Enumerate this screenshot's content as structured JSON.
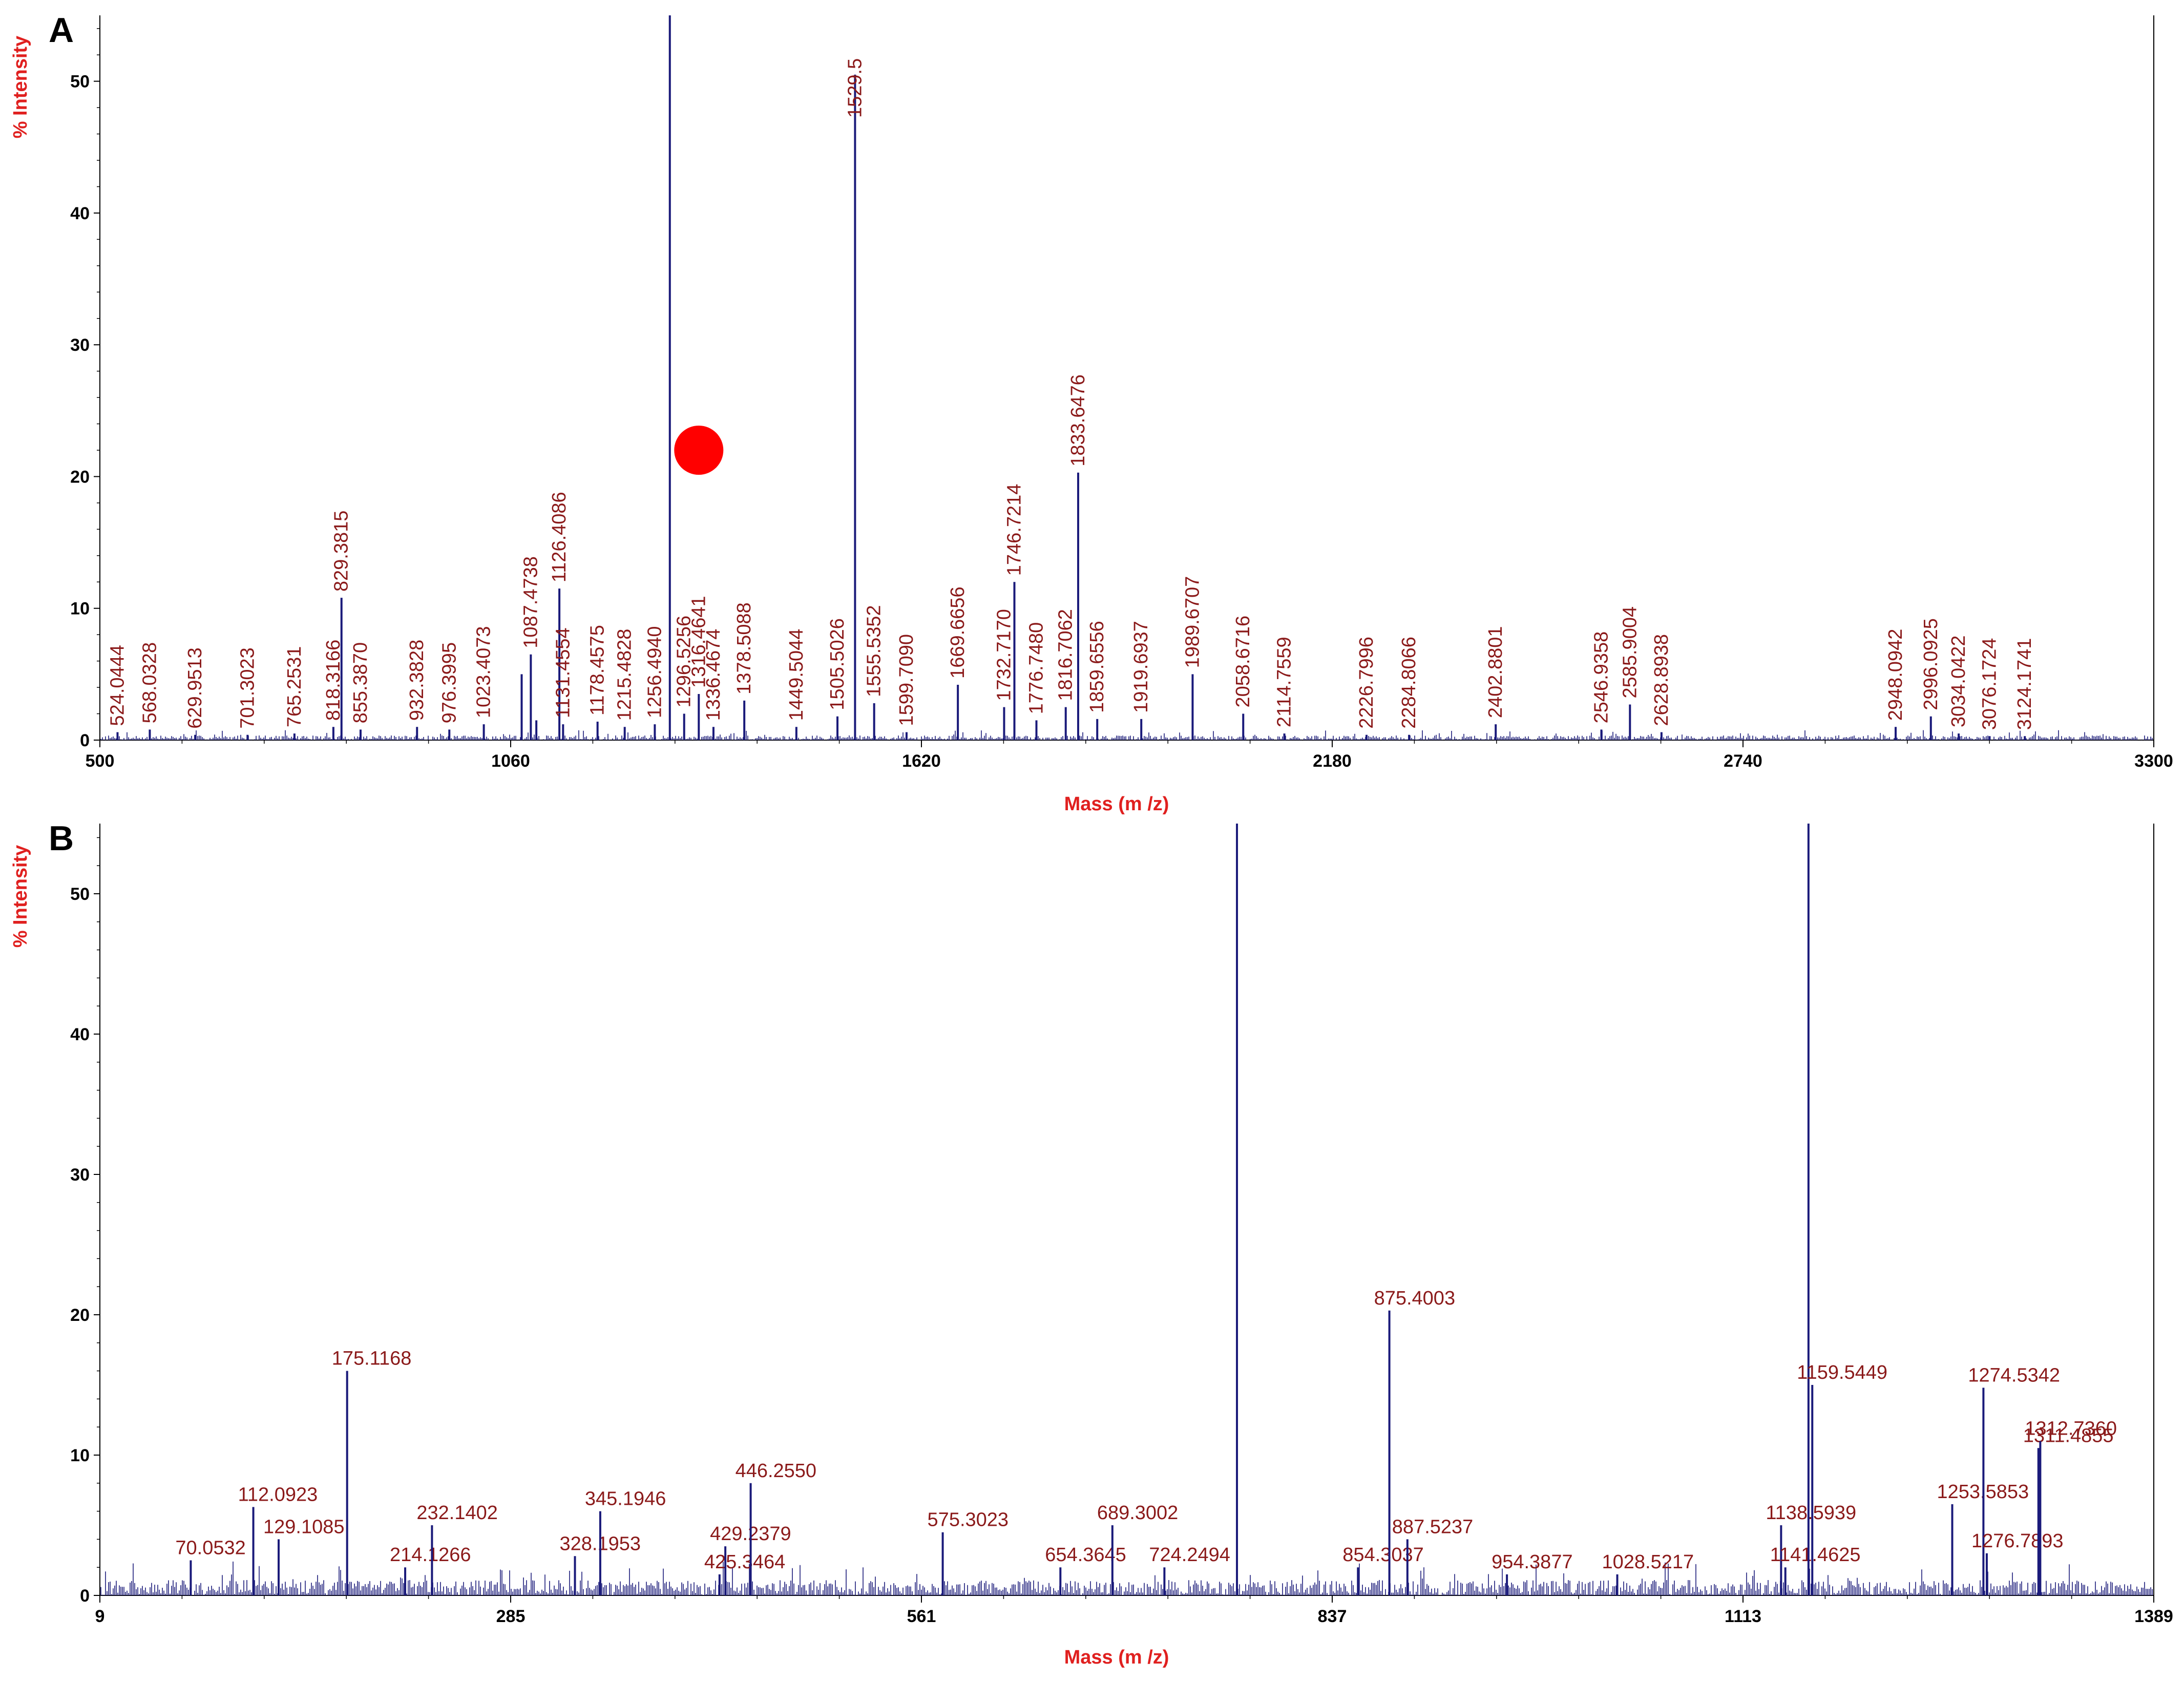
{
  "figure": {
    "panels": [
      "A",
      "B"
    ],
    "marker_color": "#ff0000",
    "trace_color": "#1a1a7a",
    "label_color": "#8b1a1a",
    "axis_title_color": "#e0201f"
  },
  "chart_data": [
    {
      "type": "line",
      "panel": "A",
      "xlabel": "Mass (m /z)",
      "ylabel": "% Intensity",
      "xlim": [
        500,
        3300
      ],
      "ylim": [
        0,
        55
      ],
      "x_ticks": [
        "500",
        "1060",
        "1620",
        "2180",
        "2740",
        "3300"
      ],
      "y_ticks": [
        "0",
        "10",
        "20",
        "30",
        "40",
        "50"
      ],
      "marker": {
        "shape": "circle",
        "x": 1316.4641,
        "y": 22
      },
      "peaks": [
        {
          "x": 524.0444,
          "y": 0.6,
          "label": "524.0444"
        },
        {
          "x": 568.0328,
          "y": 0.8,
          "label": "568.0328"
        },
        {
          "x": 629.9513,
          "y": 0.4,
          "label": "629.9513"
        },
        {
          "x": 701.3023,
          "y": 0.4,
          "label": "701.3023"
        },
        {
          "x": 765.2531,
          "y": 0.5,
          "label": "765.2531"
        },
        {
          "x": 818.3166,
          "y": 1.0,
          "label": "818.3166"
        },
        {
          "x": 829.3815,
          "y": 10.8,
          "label": "829.3815"
        },
        {
          "x": 855.387,
          "y": 0.8,
          "label": "855.3870"
        },
        {
          "x": 932.3828,
          "y": 1.0,
          "label": "932.3828"
        },
        {
          "x": 976.3995,
          "y": 0.8,
          "label": "976.3995"
        },
        {
          "x": 1023.4073,
          "y": 1.2,
          "label": "1023.4073"
        },
        {
          "x": 1075,
          "y": 5.0,
          "label": ""
        },
        {
          "x": 1087.4738,
          "y": 6.5,
          "label": "1087.4738"
        },
        {
          "x": 1095,
          "y": 1.5,
          "label": ""
        },
        {
          "x": 1126.4086,
          "y": 11.5,
          "label": "1126.4086"
        },
        {
          "x": 1131.4554,
          "y": 1.2,
          "label": "1131.4554"
        },
        {
          "x": 1178.4575,
          "y": 1.4,
          "label": "1178.4575"
        },
        {
          "x": 1215.4828,
          "y": 1.0,
          "label": "1215.4828"
        },
        {
          "x": 1256.494,
          "y": 1.2,
          "label": "1256.4940"
        },
        {
          "x": 1277,
          "y": 55.0,
          "label": ""
        },
        {
          "x": 1296.5256,
          "y": 2.0,
          "label": "1296.5256"
        },
        {
          "x": 1316.4641,
          "y": 3.5,
          "label": "1316.4641"
        },
        {
          "x": 1336.4674,
          "y": 1.0,
          "label": "1336.4674"
        },
        {
          "x": 1378.5088,
          "y": 3.0,
          "label": "1378.5088"
        },
        {
          "x": 1449.5044,
          "y": 1.0,
          "label": "1449.5044"
        },
        {
          "x": 1505.5026,
          "y": 1.8,
          "label": "1505.5026"
        },
        {
          "x": 1529.5,
          "y": 50.5,
          "label": "1529.5"
        },
        {
          "x": 1555.5352,
          "y": 2.8,
          "label": "1555.5352"
        },
        {
          "x": 1599.709,
          "y": 0.6,
          "label": "1599.7090"
        },
        {
          "x": 1669.6656,
          "y": 4.2,
          "label": "1669.6656"
        },
        {
          "x": 1732.717,
          "y": 2.5,
          "label": "1732.7170"
        },
        {
          "x": 1746.7214,
          "y": 12.0,
          "label": "1746.7214"
        },
        {
          "x": 1776.748,
          "y": 1.5,
          "label": "1776.7480"
        },
        {
          "x": 1816.7062,
          "y": 2.5,
          "label": "1816.7062"
        },
        {
          "x": 1833.6476,
          "y": 20.3,
          "label": "1833.6476"
        },
        {
          "x": 1859.6556,
          "y": 1.6,
          "label": "1859.6556"
        },
        {
          "x": 1919.6937,
          "y": 1.6,
          "label": "1919.6937"
        },
        {
          "x": 1989.6707,
          "y": 5.0,
          "label": "1989.6707"
        },
        {
          "x": 2058.6716,
          "y": 2.0,
          "label": "2058.6716"
        },
        {
          "x": 2114.7559,
          "y": 0.5,
          "label": "2114.7559"
        },
        {
          "x": 2226.7996,
          "y": 0.4,
          "label": "2226.7996"
        },
        {
          "x": 2284.8066,
          "y": 0.4,
          "label": "2284.8066"
        },
        {
          "x": 2402.8801,
          "y": 1.2,
          "label": "2402.8801"
        },
        {
          "x": 2546.9358,
          "y": 0.8,
          "label": "2546.9358"
        },
        {
          "x": 2585.9004,
          "y": 2.7,
          "label": "2585.9004"
        },
        {
          "x": 2628.8938,
          "y": 0.6,
          "label": "2628.8938"
        },
        {
          "x": 2948.0942,
          "y": 1.0,
          "label": "2948.0942"
        },
        {
          "x": 2996.0925,
          "y": 1.8,
          "label": "2996.0925"
        },
        {
          "x": 3034.0422,
          "y": 0.5,
          "label": "3034.0422"
        },
        {
          "x": 3076.1724,
          "y": 0.3,
          "label": "3076.1724"
        },
        {
          "x": 3124.1741,
          "y": 0.3,
          "label": "3124.1741"
        }
      ]
    },
    {
      "type": "line",
      "panel": "B",
      "xlabel": "Mass (m /z)",
      "ylabel": "% Intensity",
      "xlim": [
        9,
        1389
      ],
      "ylim": [
        0,
        55
      ],
      "x_ticks": [
        "9",
        "285",
        "561",
        "837",
        "1113",
        "1389"
      ],
      "y_ticks": [
        "0",
        "10",
        "20",
        "30",
        "40",
        "50"
      ],
      "peaks": [
        {
          "x": 70.0532,
          "y": 2.5,
          "label": "70.0532"
        },
        {
          "x": 112.0923,
          "y": 6.3,
          "label": "112.0923"
        },
        {
          "x": 129.1085,
          "y": 4.0,
          "label": "129.1085"
        },
        {
          "x": 175.1168,
          "y": 16.0,
          "label": "175.1168"
        },
        {
          "x": 214.1266,
          "y": 2.0,
          "label": "214.1266"
        },
        {
          "x": 232.1402,
          "y": 5.0,
          "label": "232.1402"
        },
        {
          "x": 328.1953,
          "y": 2.8,
          "label": "328.1953"
        },
        {
          "x": 345.1946,
          "y": 6.0,
          "label": "345.1946"
        },
        {
          "x": 425.3464,
          "y": 1.5,
          "label": "425.3464"
        },
        {
          "x": 429.2379,
          "y": 3.5,
          "label": "429.2379"
        },
        {
          "x": 446.255,
          "y": 8.0,
          "label": "446.2550"
        },
        {
          "x": 575.3023,
          "y": 4.5,
          "label": "575.3023"
        },
        {
          "x": 654.3645,
          "y": 2.0,
          "label": "654.3645"
        },
        {
          "x": 689.3002,
          "y": 5.0,
          "label": "689.3002"
        },
        {
          "x": 724.2494,
          "y": 2.0,
          "label": "724.2494"
        },
        {
          "x": 773,
          "y": 55.0,
          "label": ""
        },
        {
          "x": 854.3037,
          "y": 2.0,
          "label": "854.3037"
        },
        {
          "x": 875.4003,
          "y": 20.3,
          "label": "875.4003"
        },
        {
          "x": 887.5237,
          "y": 4.0,
          "label": "887.5237"
        },
        {
          "x": 954.3877,
          "y": 1.5,
          "label": "954.3877"
        },
        {
          "x": 1028.5217,
          "y": 1.5,
          "label": "1028.5217"
        },
        {
          "x": 1138.5939,
          "y": 5.0,
          "label": "1138.5939"
        },
        {
          "x": 1141.4625,
          "y": 2.0,
          "label": "1141.4625"
        },
        {
          "x": 1157,
          "y": 55.0,
          "label": ""
        },
        {
          "x": 1159.5449,
          "y": 15.0,
          "label": "1159.5449"
        },
        {
          "x": 1253.5853,
          "y": 6.5,
          "label": "1253.5853"
        },
        {
          "x": 1274.5342,
          "y": 14.8,
          "label": "1274.5342"
        },
        {
          "x": 1276.7893,
          "y": 3.0,
          "label": "1276.7893"
        },
        {
          "x": 1311.4855,
          "y": 10.5,
          "label": "1311.4855"
        },
        {
          "x": 1312.736,
          "y": 11.0,
          "label": "1312.7360"
        }
      ]
    }
  ]
}
